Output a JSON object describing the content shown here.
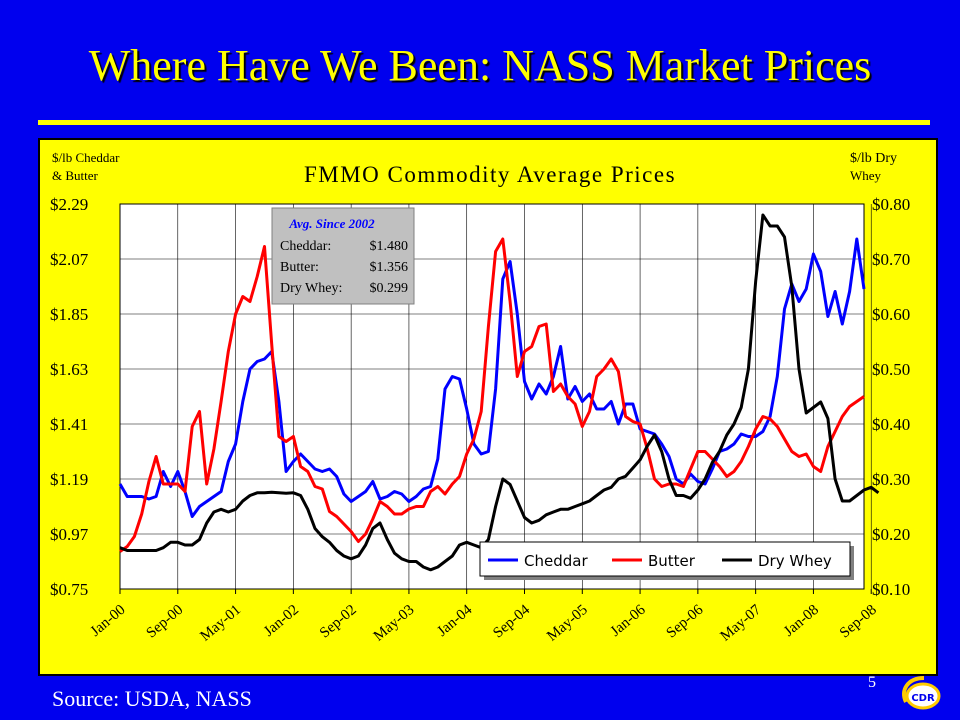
{
  "title": "Where Have We Been:  NASS Market Prices",
  "source": "Source:  USDA, NASS",
  "page_number": "5",
  "logo_text": "CDR",
  "colors": {
    "background": "#0000ee",
    "title": "#ffff00",
    "panel": "#ffff00",
    "plot": "#ffffff",
    "cheddar": "#0000ff",
    "butter": "#ff0000",
    "whey": "#000000"
  },
  "chart_data": {
    "type": "line",
    "title": "FMMO Commodity Average Prices",
    "ylabel_left": [
      "$/lb Cheddar",
      "& Butter"
    ],
    "ylabel_right": [
      "$/lb Dry",
      "Whey"
    ],
    "ylim_left": [
      0.75,
      2.29
    ],
    "ylim_right": [
      0.1,
      0.8
    ],
    "yticks_left": [
      "$2.29",
      "$2.07",
      "$1.85",
      "$1.63",
      "$1.41",
      "$1.19",
      "$0.97",
      "$0.75"
    ],
    "yticks_right": [
      "$0.80",
      "$0.70",
      "$0.60",
      "$0.50",
      "$0.40",
      "$0.30",
      "$0.20",
      "$0.10"
    ],
    "x_tick_labels": [
      "Jan-00",
      "Sep-00",
      "May-01",
      "Jan-02",
      "Sep-02",
      "May-03",
      "Jan-04",
      "Sep-04",
      "May-05",
      "Jan-06",
      "Sep-06",
      "May-07",
      "Jan-08",
      "Sep-08"
    ],
    "x_start": "Jan-00",
    "x_step": "1 month",
    "grid": true,
    "legend_position": "bottom-right",
    "annotation": {
      "title": "Avg. Since 2002",
      "rows": [
        {
          "label": "Cheddar:",
          "value": "$1.480"
        },
        {
          "label": "Butter:",
          "value": "$1.356"
        },
        {
          "label": "Dry Whey:",
          "value": "$0.299"
        }
      ]
    },
    "series": [
      {
        "name": "Cheddar",
        "axis": "left",
        "values": [
          1.17,
          1.12,
          1.12,
          1.12,
          1.11,
          1.12,
          1.22,
          1.16,
          1.22,
          1.14,
          1.04,
          1.08,
          1.1,
          1.12,
          1.14,
          1.26,
          1.33,
          1.5,
          1.63,
          1.66,
          1.67,
          1.7,
          1.5,
          1.22,
          1.26,
          1.29,
          1.26,
          1.23,
          1.22,
          1.23,
          1.2,
          1.13,
          1.1,
          1.12,
          1.14,
          1.18,
          1.11,
          1.12,
          1.14,
          1.13,
          1.1,
          1.12,
          1.15,
          1.16,
          1.27,
          1.55,
          1.6,
          1.59,
          1.47,
          1.33,
          1.29,
          1.3,
          1.55,
          1.99,
          2.06,
          1.85,
          1.58,
          1.51,
          1.57,
          1.53,
          1.6,
          1.72,
          1.51,
          1.56,
          1.5,
          1.53,
          1.47,
          1.47,
          1.5,
          1.41,
          1.49,
          1.49,
          1.39,
          1.38,
          1.37,
          1.33,
          1.28,
          1.19,
          1.17,
          1.21,
          1.18,
          1.17,
          1.23,
          1.3,
          1.31,
          1.33,
          1.37,
          1.36,
          1.36,
          1.38,
          1.44,
          1.6,
          1.87,
          1.97,
          1.9,
          1.95,
          2.09,
          2.02,
          1.84,
          1.94,
          1.81,
          1.94,
          2.15,
          1.95
        ]
      },
      {
        "name": "Butter",
        "axis": "left",
        "values": [
          0.9,
          0.92,
          0.96,
          1.05,
          1.18,
          1.28,
          1.17,
          1.17,
          1.17,
          1.14,
          1.4,
          1.46,
          1.17,
          1.31,
          1.5,
          1.7,
          1.85,
          1.92,
          1.9,
          2.0,
          2.12,
          1.73,
          1.36,
          1.34,
          1.36,
          1.24,
          1.22,
          1.16,
          1.15,
          1.06,
          1.04,
          1.01,
          0.98,
          0.94,
          0.97,
          1.03,
          1.1,
          1.08,
          1.05,
          1.05,
          1.07,
          1.08,
          1.08,
          1.14,
          1.16,
          1.13,
          1.17,
          1.2,
          1.29,
          1.35,
          1.46,
          1.8,
          2.1,
          2.15,
          1.9,
          1.6,
          1.7,
          1.72,
          1.8,
          1.81,
          1.54,
          1.57,
          1.52,
          1.49,
          1.4,
          1.46,
          1.6,
          1.63,
          1.67,
          1.62,
          1.44,
          1.42,
          1.41,
          1.31,
          1.19,
          1.16,
          1.17,
          1.17,
          1.16,
          1.23,
          1.3,
          1.3,
          1.27,
          1.24,
          1.2,
          1.22,
          1.26,
          1.32,
          1.39,
          1.44,
          1.43,
          1.4,
          1.35,
          1.3,
          1.28,
          1.29,
          1.24,
          1.22,
          1.32,
          1.38,
          1.44,
          1.48,
          1.5,
          1.52
        ]
      },
      {
        "name": "Dry Whey",
        "axis": "right",
        "values": [
          0.175,
          0.17,
          0.17,
          0.17,
          0.17,
          0.17,
          0.175,
          0.185,
          0.185,
          0.18,
          0.18,
          0.19,
          0.22,
          0.24,
          0.245,
          0.24,
          0.245,
          0.26,
          0.27,
          0.275,
          0.275,
          0.276,
          0.275,
          0.274,
          0.275,
          0.27,
          0.245,
          0.21,
          0.195,
          0.185,
          0.17,
          0.16,
          0.155,
          0.16,
          0.18,
          0.21,
          0.22,
          0.19,
          0.165,
          0.155,
          0.15,
          0.15,
          0.14,
          0.135,
          0.14,
          0.15,
          0.16,
          0.18,
          0.185,
          0.18,
          0.175,
          0.19,
          0.25,
          0.3,
          0.29,
          0.26,
          0.23,
          0.22,
          0.225,
          0.235,
          0.24,
          0.245,
          0.245,
          0.25,
          0.255,
          0.26,
          0.27,
          0.28,
          0.285,
          0.3,
          0.305,
          0.32,
          0.335,
          0.36,
          0.38,
          0.35,
          0.3,
          0.27,
          0.27,
          0.265,
          0.28,
          0.3,
          0.33,
          0.35,
          0.38,
          0.4,
          0.43,
          0.5,
          0.66,
          0.78,
          0.76,
          0.76,
          0.74,
          0.65,
          0.5,
          0.42,
          0.43,
          0.44,
          0.41,
          0.3,
          0.26,
          0.26,
          0.27,
          0.28,
          0.285,
          0.275
        ]
      }
    ]
  }
}
